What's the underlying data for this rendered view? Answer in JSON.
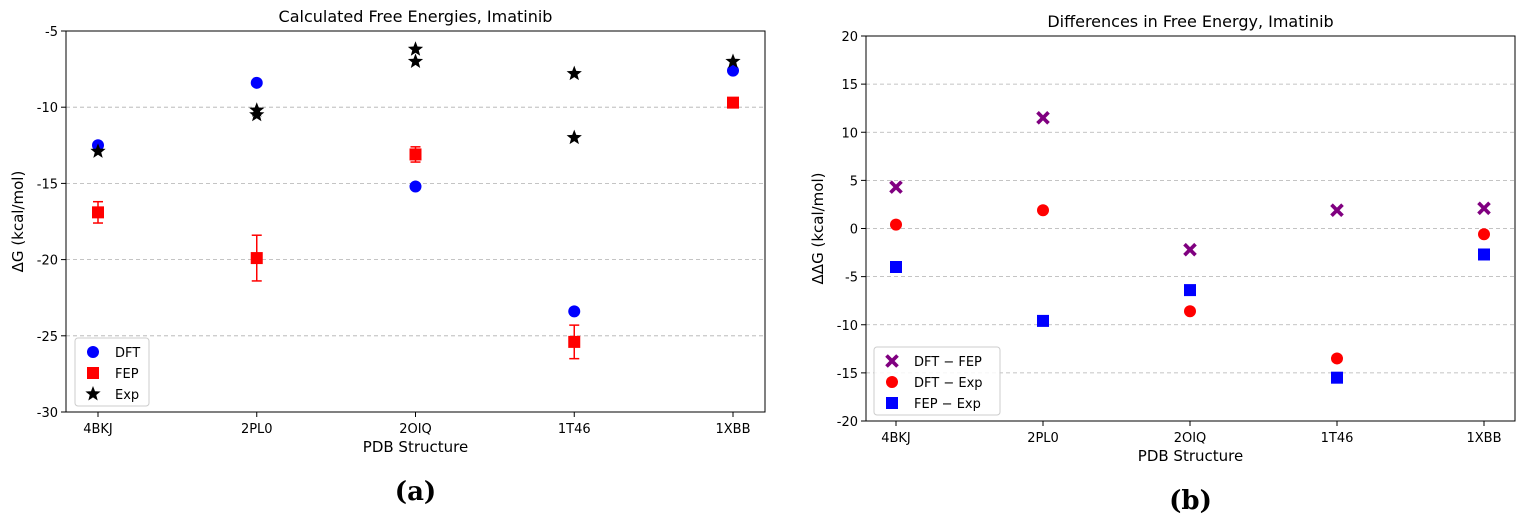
{
  "chart_data": [
    {
      "type": "scatter",
      "title": "Calculated Free Energies, Imatinib",
      "xlabel": "PDB Structure",
      "ylabel": "ΔG (kcal/mol)",
      "caption": "(a)",
      "categories": [
        "4BKJ",
        "2PL0",
        "2OIQ",
        "1T46",
        "1XBB"
      ],
      "ylim": [
        -30,
        -5
      ],
      "yticks": [
        -30,
        -25,
        -20,
        -15,
        -10,
        -5
      ],
      "grid": "horizontal dashed",
      "legend_position": "lower-left",
      "series": [
        {
          "name": "DFT",
          "marker": "circle",
          "color": "#0000ff",
          "values": [
            -12.5,
            -8.4,
            -15.2,
            -23.4,
            -7.6
          ]
        },
        {
          "name": "FEP",
          "marker": "square",
          "color": "#ff0000",
          "values": [
            -16.9,
            -19.9,
            -13.1,
            -25.4,
            -9.7
          ],
          "err": [
            0.7,
            1.5,
            0.5,
            1.1,
            0.3
          ]
        },
        {
          "name": "Exp",
          "marker": "star",
          "color": "#000000",
          "points": [
            {
              "x": "4BKJ",
              "y": -12.9
            },
            {
              "x": "2PL0",
              "y": -10.2
            },
            {
              "x": "2PL0",
              "y": -10.5
            },
            {
              "x": "2OIQ",
              "y": -6.2
            },
            {
              "x": "2OIQ",
              "y": -7.0
            },
            {
              "x": "1T46",
              "y": -7.8
            },
            {
              "x": "1T46",
              "y": -12.0
            },
            {
              "x": "1XBB",
              "y": -7.0
            }
          ]
        }
      ]
    },
    {
      "type": "scatter",
      "title": "Differences in Free Energy, Imatinib",
      "xlabel": "PDB Structure",
      "ylabel": "ΔΔG (kcal/mol)",
      "caption": "(b)",
      "categories": [
        "4BKJ",
        "2PL0",
        "2OIQ",
        "1T46",
        "1XBB"
      ],
      "ylim": [
        -20,
        20
      ],
      "yticks": [
        -20,
        -15,
        -10,
        -5,
        0,
        5,
        10,
        15,
        20
      ],
      "grid": "horizontal dashed",
      "legend_position": "lower-left",
      "series": [
        {
          "name": "DFT − FEP",
          "marker": "x",
          "color": "#800080",
          "values": [
            4.3,
            11.5,
            -2.2,
            1.9,
            2.1
          ]
        },
        {
          "name": "DFT − Exp",
          "marker": "circle",
          "color": "#ff0000",
          "values": [
            0.4,
            1.9,
            -8.6,
            -13.5,
            -0.6
          ]
        },
        {
          "name": "FEP − Exp",
          "marker": "square",
          "color": "#0000ff",
          "values": [
            -4.0,
            -9.6,
            -6.4,
            -15.5,
            -2.7
          ]
        }
      ]
    }
  ]
}
